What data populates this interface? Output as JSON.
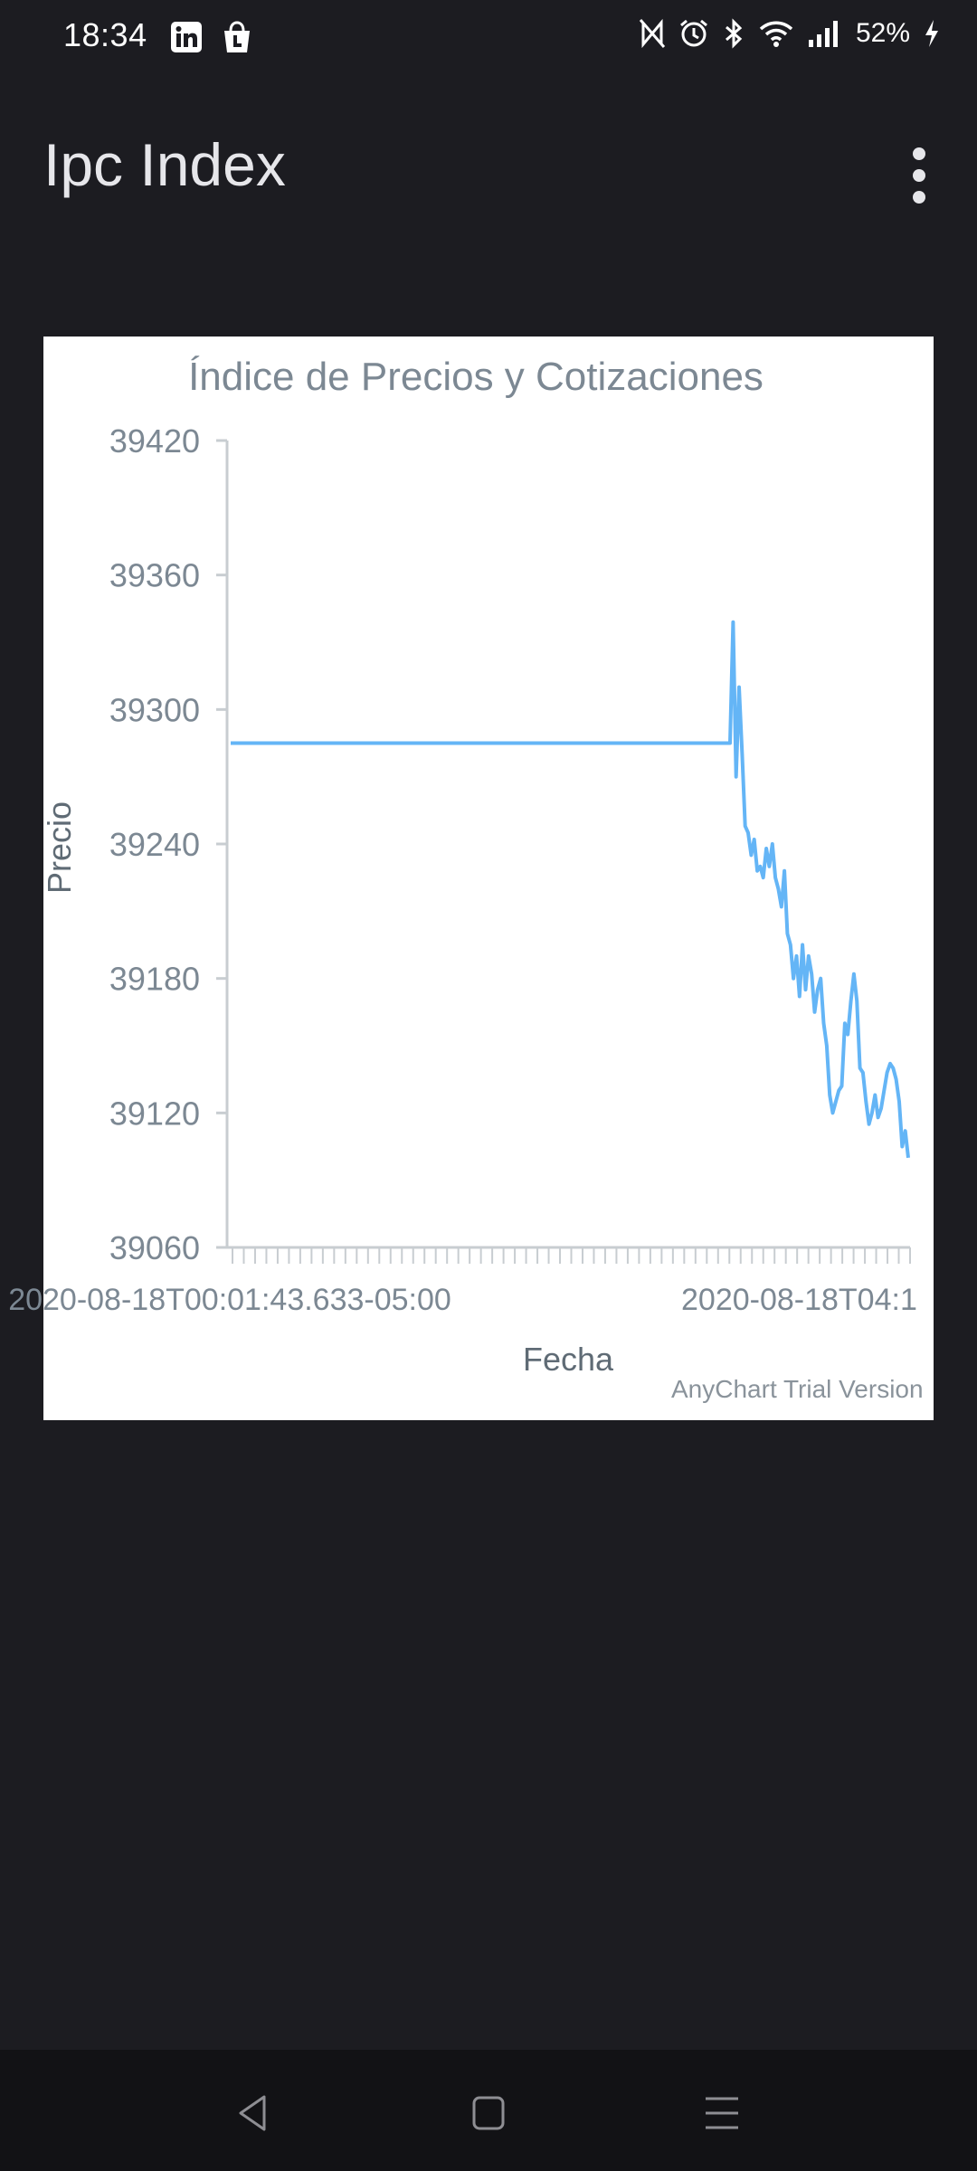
{
  "status_bar": {
    "time": "18:34",
    "battery_percent": "52%",
    "left_icons": [
      "linkedin-icon",
      "shopping-bag-icon"
    ],
    "right_icons": [
      "nfc-icon",
      "alarm-icon",
      "bluetooth-icon",
      "wifi-icon",
      "signal-icon",
      "battery-charging-icon"
    ]
  },
  "app_bar": {
    "title": "Ipc Index",
    "menu_icon": "more-vert-icon"
  },
  "chart_data": {
    "type": "line",
    "title": "Índice de Precios y Cotizaciones",
    "xlabel": "Fecha",
    "ylabel": "Precio",
    "ylim": [
      39060,
      39420
    ],
    "yticks": [
      "39420",
      "39360",
      "39300",
      "39240",
      "39180",
      "39120",
      "39060"
    ],
    "x_tick_labels": [
      "2020-08-18T00:01:43.633-05:00",
      "2020-08-18T04:1"
    ],
    "grid": false,
    "legend": "none",
    "watermark": "AnyChart Trial Version",
    "series": [
      {
        "color": "#64b5f6",
        "values": [
          39285,
          39285,
          39339,
          39270,
          39310,
          39280,
          39248,
          39245,
          39235,
          39242,
          39228,
          39230,
          39225,
          39238,
          39230,
          39240,
          39225,
          39220,
          39212,
          39228,
          39200,
          39195,
          39180,
          39190,
          39172,
          39195,
          39175,
          39190,
          39182,
          39165,
          39175,
          39180,
          39160,
          39150,
          39128,
          39120,
          39125,
          39130,
          39132,
          39160,
          39155,
          39170,
          39182,
          39170,
          39140,
          39138,
          39125,
          39115,
          39120,
          39128,
          39118,
          39122,
          39130,
          39138,
          39142,
          39140,
          39135,
          39125,
          39105,
          39112,
          39100
        ]
      }
    ]
  },
  "nav_bar": {
    "icons": [
      "back-icon",
      "home-icon",
      "recents-icon"
    ]
  }
}
